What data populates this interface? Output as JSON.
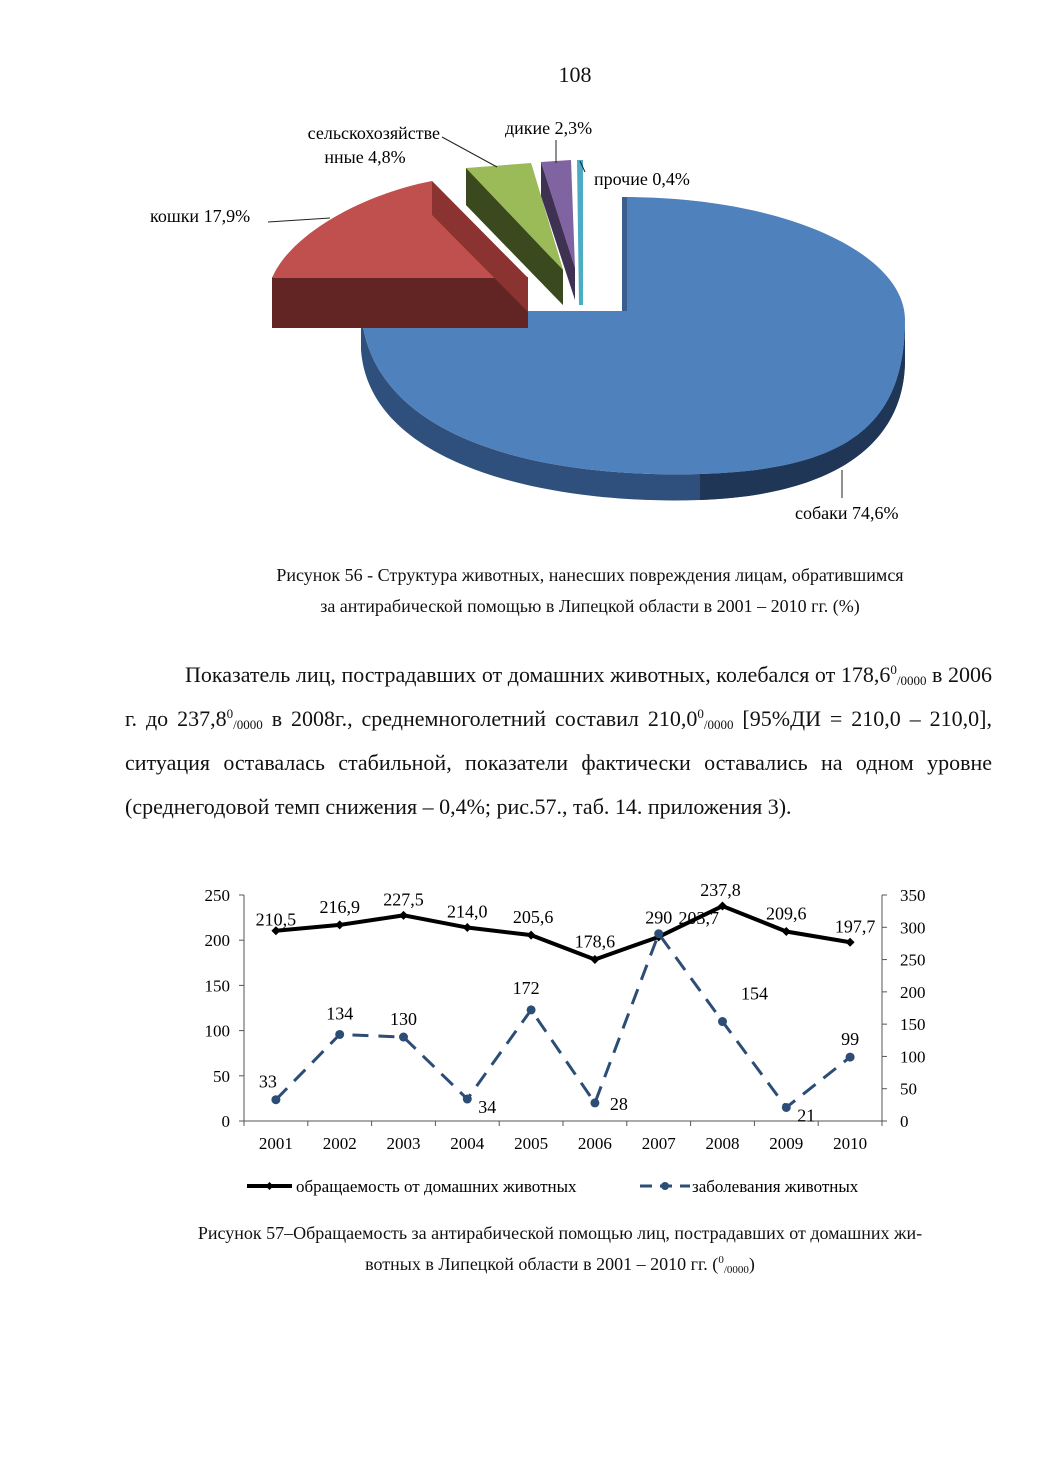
{
  "page_number": "108",
  "figure56": {
    "caption_line1": "Рисунок 56 - Структура животных, нанесших повреждения лицам, обратившимся",
    "caption_line2": "за антирабической помощью в Липецкой области в 2001 – 2010 гг. (%)"
  },
  "paragraph": {
    "p1": "Показатель лиц, пострадавших от домашних животных, колебался от 178,6",
    "sup1": "0",
    "sub1": "/0000",
    "p2": " в 2006 г. до 237,8",
    "sup2": "0",
    "sub2": "/0000",
    "p3": " в 2008г., среднемноголетний составил 210,0",
    "sup3": "0",
    "sub3": "/0000",
    "p4": " [95%ДИ = 210,0 – 210,0], ситуация оставалась стабильной, показатели фактически оставались на одном уровне (среднегодовой темп снижения – 0,4%; рис.57., таб. 14. приложения 3)."
  },
  "figure57": {
    "caption_line1": "Рисунок 57–Обращаемость за антирабической помощью лиц, пострадавших от домашних жи-",
    "caption_line2a": "вотных в Липецкой области в 2001 – 2010 гг. (",
    "caption_sup": "0",
    "caption_sub": "/0000",
    "caption_line2b": ")"
  },
  "chart_data": [
    {
      "type": "pie",
      "title": "",
      "slices": [
        {
          "label": "собаки 74,6%",
          "value": 74.6,
          "color": "#4f81bd"
        },
        {
          "label": "кошки 17,9%",
          "value": 17.9,
          "color": "#c0504d"
        },
        {
          "label": "сельскохозяйстве нные 4,8%",
          "label_line1": "сельскохозяйстве",
          "label_line2": "нные 4,8%",
          "value": 4.8,
          "color": "#9bbb59"
        },
        {
          "label": "дикие 2,3%",
          "value": 2.3,
          "color": "#8064a2"
        },
        {
          "label": "прочие 0,4%",
          "value": 0.4,
          "color": "#4bacc6"
        }
      ]
    },
    {
      "type": "line",
      "x": [
        "2001",
        "2002",
        "2003",
        "2004",
        "2005",
        "2006",
        "2007",
        "2008",
        "2009",
        "2010"
      ],
      "y_left_ticks": [
        "0",
        "50",
        "100",
        "150",
        "200",
        "250"
      ],
      "y_right_ticks": [
        "0",
        "50",
        "100",
        "150",
        "200",
        "250",
        "300",
        "350"
      ],
      "ylim_left": [
        0,
        250
      ],
      "ylim_right": [
        0,
        350
      ],
      "series": [
        {
          "name": "обращаемость от домашних животных",
          "axis": "left",
          "style": "solid",
          "color": "#000000",
          "values": [
            210.5,
            216.9,
            227.5,
            214.0,
            205.6,
            178.6,
            203.7,
            237.8,
            209.6,
            197.7
          ],
          "labels": [
            "210,5",
            "216,9",
            "227,5",
            "214,0",
            "205,6",
            "178,6",
            "203,7",
            "237,8",
            "209,6",
            "197,7"
          ]
        },
        {
          "name": "заболевания животных",
          "axis": "right",
          "style": "dashed",
          "color": "#2c4d75",
          "values": [
            33,
            134,
            130,
            34,
            172,
            28,
            290,
            154,
            21,
            99
          ],
          "labels": [
            "33",
            "134",
            "130",
            "34",
            "172",
            "28",
            "290",
            "154",
            "21",
            "99"
          ]
        }
      ],
      "legend": "bottom"
    }
  ]
}
